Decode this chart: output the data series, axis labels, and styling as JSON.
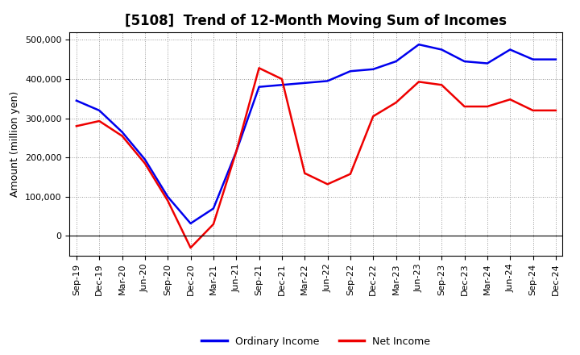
{
  "title": "[5108]  Trend of 12-Month Moving Sum of Incomes",
  "ylabel": "Amount (million yen)",
  "ylim": [
    -50000,
    520000
  ],
  "yticks": [
    0,
    100000,
    200000,
    300000,
    400000,
    500000
  ],
  "ytick_labels": [
    "0",
    "100,000",
    "200,000",
    "300,000",
    "400,000",
    "500,000"
  ],
  "labels": [
    "Sep-19",
    "Dec-19",
    "Mar-20",
    "Jun-20",
    "Sep-20",
    "Dec-20",
    "Mar-21",
    "Jun-21",
    "Sep-21",
    "Dec-21",
    "Mar-22",
    "Jun-22",
    "Sep-22",
    "Dec-22",
    "Mar-23",
    "Jun-23",
    "Sep-23",
    "Dec-23",
    "Mar-24",
    "Jun-24",
    "Sep-24",
    "Dec-24"
  ],
  "ordinary_income": [
    345000,
    320000,
    265000,
    195000,
    100000,
    32000,
    70000,
    215000,
    380000,
    385000,
    390000,
    395000,
    420000,
    425000,
    445000,
    488000,
    475000,
    445000,
    440000,
    475000,
    450000,
    450000
  ],
  "net_income": [
    280000,
    293000,
    255000,
    185000,
    90000,
    -30000,
    30000,
    215000,
    428000,
    400000,
    160000,
    132000,
    158000,
    305000,
    340000,
    393000,
    385000,
    330000,
    330000,
    348000,
    320000,
    320000
  ],
  "ordinary_color": "#0000ee",
  "net_color": "#ee0000",
  "background_color": "#ffffff",
  "grid_color": "#999999",
  "legend_ordinary": "Ordinary Income",
  "legend_net": "Net Income",
  "title_fontsize": 12,
  "axis_fontsize": 9,
  "tick_fontsize": 8,
  "legend_fontsize": 9
}
